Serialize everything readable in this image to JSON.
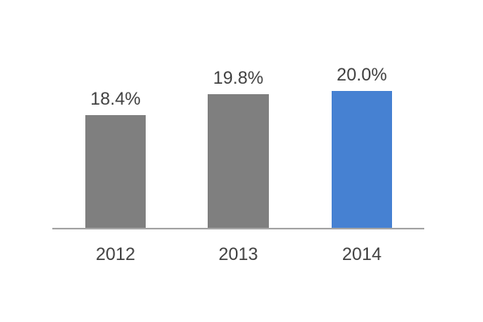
{
  "chart_data": {
    "type": "bar",
    "title": "",
    "xlabel": "",
    "ylabel": "",
    "categories": [
      "2012",
      "2013",
      "2014"
    ],
    "values": [
      18.4,
      19.8,
      20.0
    ],
    "value_labels": [
      "18.4%",
      "19.8%",
      "20.0%"
    ],
    "bar_colors": [
      "#7f7f7f",
      "#7f7f7f",
      "#4681d2"
    ],
    "ylim": [
      10.8,
      21.8
    ],
    "grid": false,
    "legend": false,
    "axis_line_color": "#a6a6a6",
    "label_color": "#404040",
    "background_color": "#ffffff"
  }
}
